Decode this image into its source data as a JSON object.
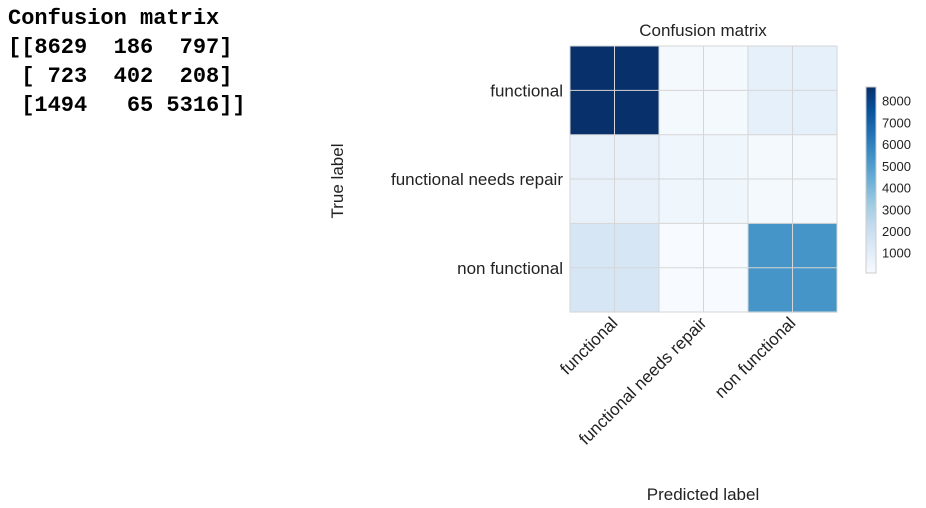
{
  "console": {
    "heading": "Confusion matrix",
    "matrix_lines": [
      "[[8629  186  797]",
      " [ 723  402  208]",
      " [1494   65 5316]]"
    ]
  },
  "colors": {
    "cmap": [
      "#f7fbff",
      "#deebf7",
      "#c6dbef",
      "#9ecae1",
      "#6baed6",
      "#4292c6",
      "#2171b5",
      "#08519c",
      "#08306b"
    ],
    "grid": "#d6d6d6"
  },
  "chart_data": {
    "type": "heatmap",
    "title": "Confusion matrix",
    "xlabel": "Predicted label",
    "ylabel": "True label",
    "x_categories": [
      "functional",
      "functional needs repair",
      "non functional"
    ],
    "y_categories": [
      "functional",
      "functional needs repair",
      "non functional"
    ],
    "values": [
      [
        8629,
        186,
        797
      ],
      [
        723,
        402,
        208
      ],
      [
        1494,
        65,
        5316
      ]
    ],
    "colorbar": {
      "ticks": [
        "1000",
        "2000",
        "3000",
        "4000",
        "5000",
        "6000",
        "7000",
        "8000"
      ],
      "range": [
        65,
        8629
      ]
    },
    "grid": true,
    "x_tick_rotation": -45
  }
}
